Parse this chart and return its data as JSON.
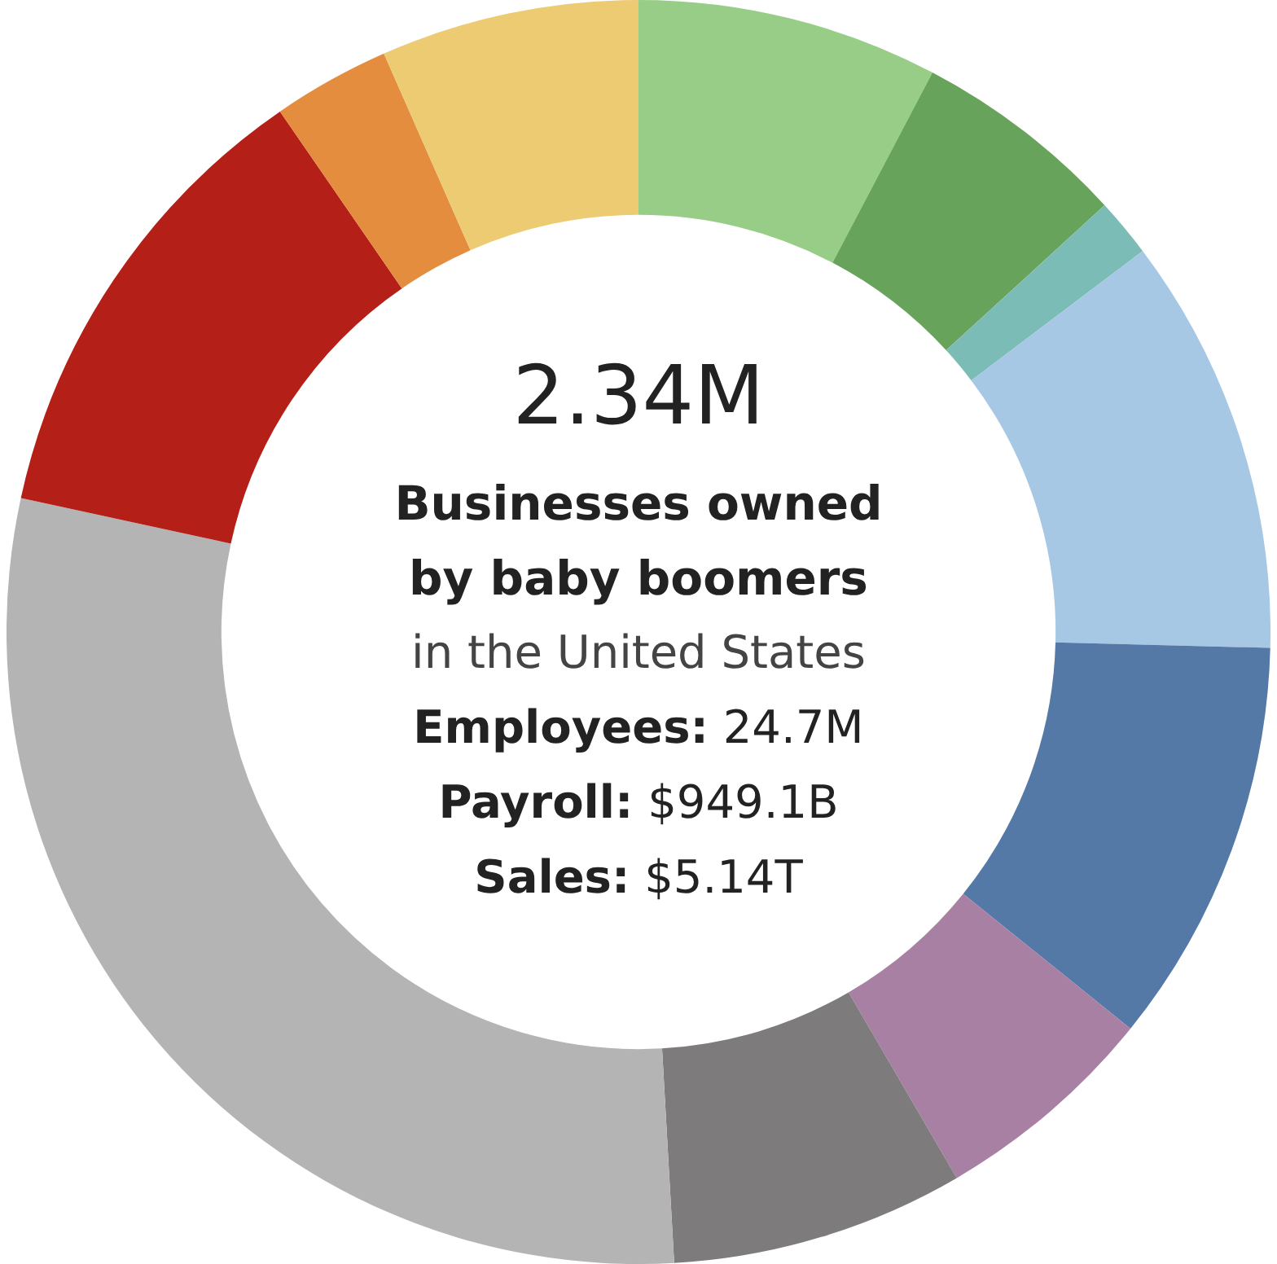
{
  "chart_data": {
    "type": "donut",
    "categories": [
      null,
      null,
      null,
      null,
      null,
      null,
      null,
      null,
      null,
      null,
      null
    ],
    "values": [
      7.7,
      5.5,
      1.5,
      10.7,
      10.4,
      5.8,
      7.5,
      29.3,
      12.0,
      3.0,
      6.6
    ],
    "colors": [
      "#98cd87",
      "#67a35a",
      "#7bbdb6",
      "#a7c8e4",
      "#5479a6",
      "#a880a3",
      "#7d7b7b",
      "#b4b4b4",
      "#b42018",
      "#e48d3e",
      "#eccb73"
    ],
    "legend": false,
    "annotations": [
      "2.34M",
      "Businesses owned",
      "by baby boomers",
      "in the United States",
      "Employees: 24.7M",
      "Payroll: $949.1B",
      "Sales: $5.14T"
    ]
  }
}
